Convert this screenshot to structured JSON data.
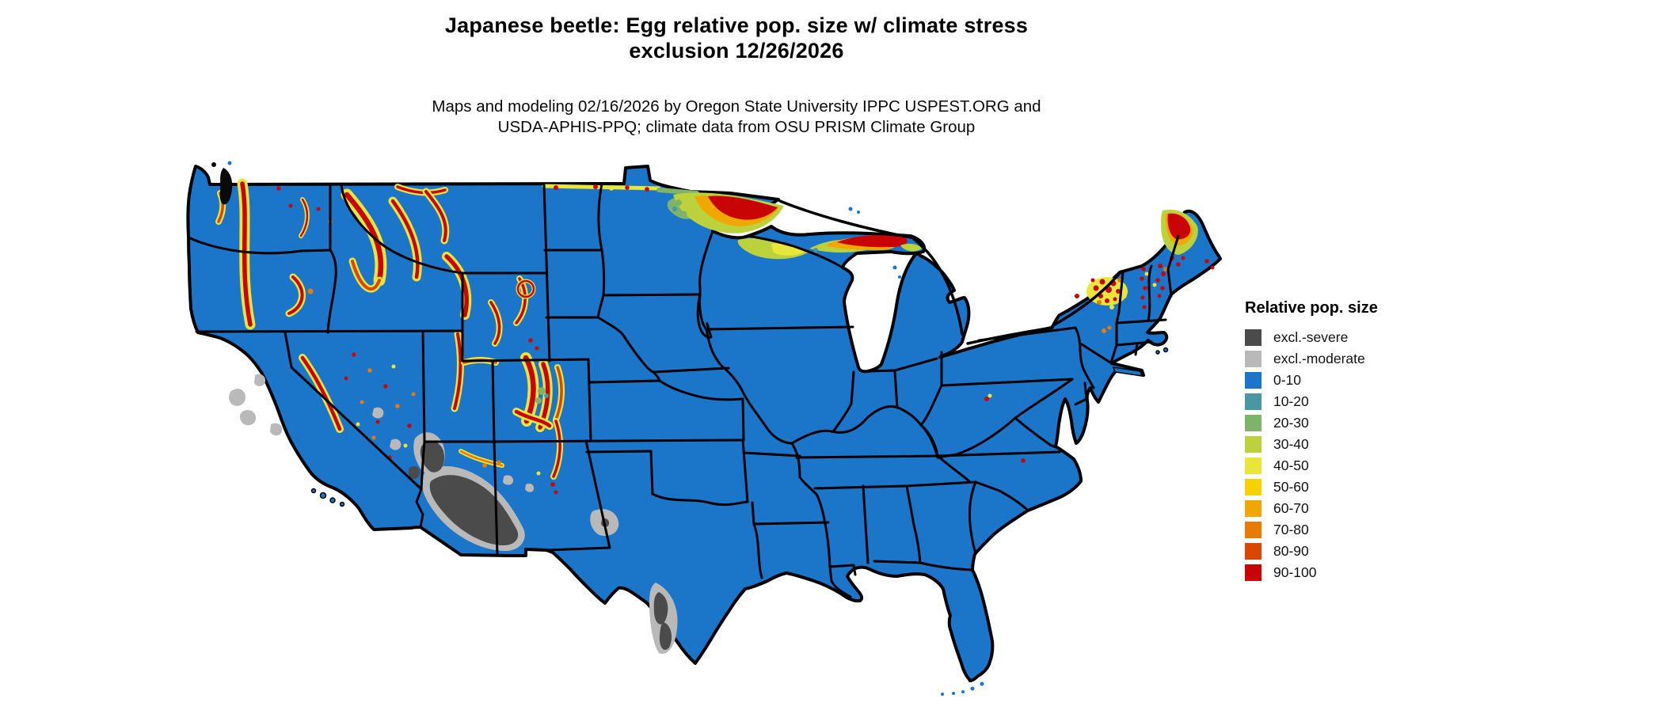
{
  "title": {
    "line1": "Japanese beetle: Egg relative pop. size w/ climate stress",
    "line2": "exclusion 12/26/2026"
  },
  "subtitle": {
    "line1": "Maps and modeling 02/16/2026 by Oregon State University IPPC USPEST.ORG and",
    "line2": "USDA-APHIS-PPQ; climate data from OSU PRISM Climate Group"
  },
  "map": {
    "region": "Contiguous United States",
    "base_color": "#1b75c9",
    "border_color": "#000000"
  },
  "legend": {
    "title": "Relative pop. size",
    "items": [
      {
        "label": "excl.-severe",
        "color": "#4b4b4b"
      },
      {
        "label": "excl.-moderate",
        "color": "#b9b9b9"
      },
      {
        "label": "0-10",
        "color": "#1b75c9"
      },
      {
        "label": "10-20",
        "color": "#4a96a3"
      },
      {
        "label": "20-30",
        "color": "#7fb26a"
      },
      {
        "label": "30-40",
        "color": "#bcd23d"
      },
      {
        "label": "40-50",
        "color": "#e8e63a"
      },
      {
        "label": "50-60",
        "color": "#f6d200"
      },
      {
        "label": "60-70",
        "color": "#f0a800"
      },
      {
        "label": "70-80",
        "color": "#e87c00"
      },
      {
        "label": "80-90",
        "color": "#da4703"
      },
      {
        "label": "90-100",
        "color": "#c80404"
      }
    ]
  }
}
